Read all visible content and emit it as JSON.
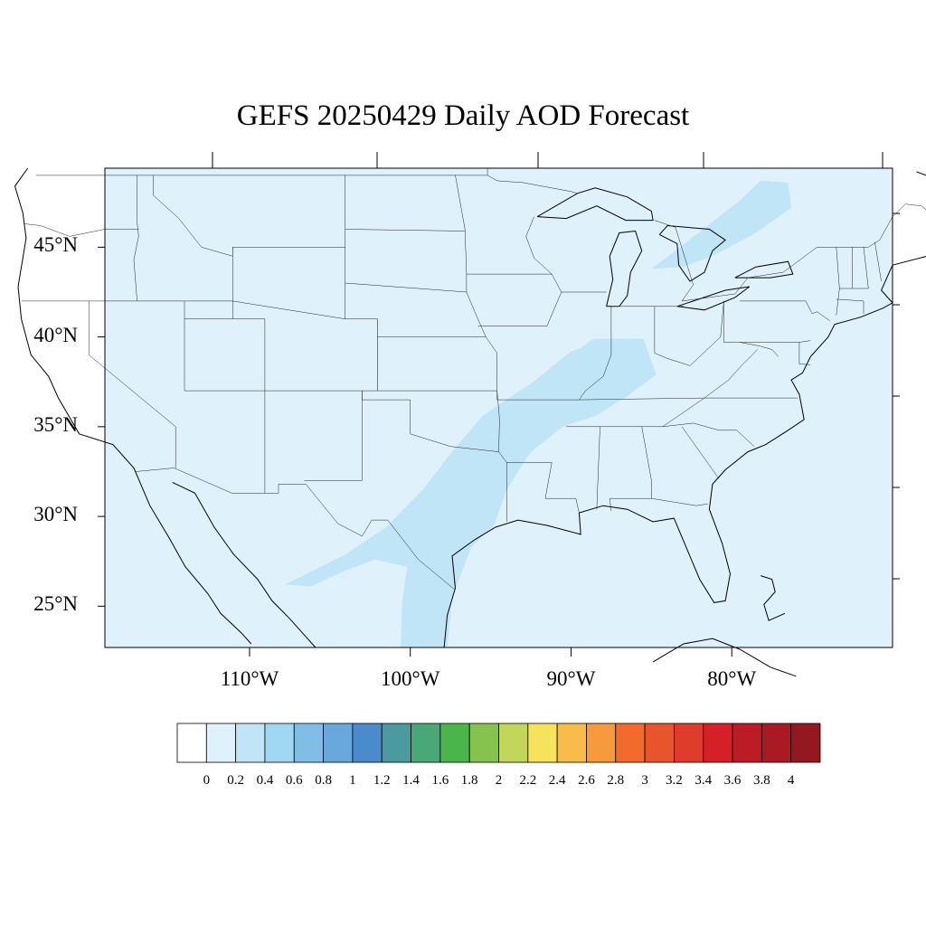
{
  "title": "GEFS 20250429 Daily AOD Forecast",
  "map": {
    "projection": "equirectangular",
    "lon_range": [
      -119,
      -70
    ],
    "lat_range": [
      22.7,
      49.4
    ],
    "background_color": "#dff1fb",
    "aod_overlay_color": "#bfe5f7",
    "aod_overlay_color_strong": "#a7d9f2",
    "lat_ticks": [
      {
        "value": 25,
        "label": "25°N"
      },
      {
        "value": 30,
        "label": "30°N"
      },
      {
        "value": 35,
        "label": "35°N"
      },
      {
        "value": 40,
        "label": "40°N"
      },
      {
        "value": 45,
        "label": "45°N"
      }
    ],
    "lon_ticks": [
      {
        "value": -110,
        "label": "110°W"
      },
      {
        "value": -100,
        "label": "100°W"
      },
      {
        "value": -90,
        "label": "90°W"
      },
      {
        "value": -80,
        "label": "80°W"
      }
    ]
  },
  "colorbar": {
    "labels": [
      "0",
      "0.2",
      "0.4",
      "0.6",
      "0.8",
      "1",
      "1.2",
      "1.4",
      "1.6",
      "1.8",
      "2",
      "2.2",
      "2.4",
      "2.6",
      "2.8",
      "3",
      "3.2",
      "3.4",
      "3.6",
      "3.8",
      "4"
    ],
    "colors": [
      "#ffffff",
      "#dff1fb",
      "#bfe5f7",
      "#a0d8f2",
      "#82bde6",
      "#68a8dc",
      "#4a8ccb",
      "#4a9aa0",
      "#48a878",
      "#4ab54a",
      "#86c24e",
      "#c2d65a",
      "#f6e35c",
      "#f7bd48",
      "#f69a3c",
      "#f26a2c",
      "#e8542c",
      "#e03c2c",
      "#d62028",
      "#bd1c24",
      "#a91a22",
      "#941820"
    ]
  }
}
